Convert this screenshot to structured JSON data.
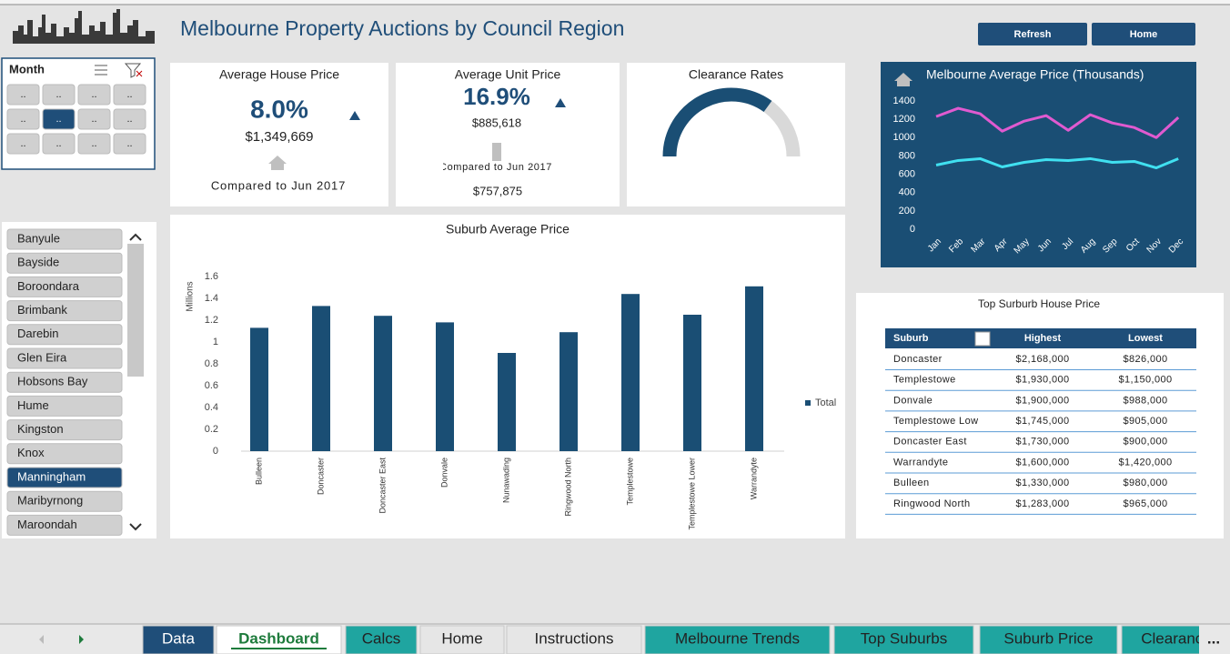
{
  "header": {
    "title": "Melbourne Property Auctions by Council Region",
    "buttons": [
      "Refresh",
      "Home"
    ]
  },
  "month_slicer": {
    "title": "Month",
    "buttons": [
      "..",
      "..",
      "..",
      "..",
      "..",
      "..",
      "..",
      "..",
      "..",
      "..",
      "..",
      ".."
    ],
    "selected": 5
  },
  "kpis": [
    {
      "title": "Average House Price",
      "change": "8.0%",
      "price": "$1,349,669",
      "note": "Compared to Jun 2017"
    },
    {
      "title": "Average Unit Price",
      "change": "16.9%",
      "price": "$885,618",
      "note": "Compared to Jun 2017",
      "previous": "$757,875"
    }
  ],
  "council_slicer": {
    "items": [
      "Banyule",
      "Bayside",
      "Boroondara",
      "Brimbank",
      "Darebin",
      "Glen Eira",
      "Hobsons Bay",
      "Hume",
      "Kingston",
      "Knox",
      "Manningham",
      "Maribyrnong",
      "Maroondah"
    ],
    "selected": 10
  },
  "chart_data": [
    {
      "type": "gauge",
      "title": "Clearance Rates",
      "value": 70,
      "lim": [
        0,
        100
      ],
      "color": "#1a4e74",
      "track_color": "#d9d9d9"
    },
    {
      "type": "bar",
      "title": "Suburb Average Price",
      "y_label": "Millions",
      "categories": [
        "Bulleen",
        "Doncaster",
        "Doncaster East",
        "Donvale",
        "Nunawading",
        "Ringwood North",
        "Templestowe",
        "Templestowe Lower",
        "Warrandyte"
      ],
      "series": [
        {
          "name": "Total",
          "color": "#1a4e74",
          "values": [
            1.13,
            1.33,
            1.24,
            1.18,
            0.9,
            1.09,
            1.44,
            1.25,
            1.51
          ]
        }
      ],
      "ylim": [
        0,
        1.6
      ],
      "yticks": [
        0,
        0.2,
        0.4,
        0.6,
        0.8,
        1,
        1.2,
        1.4,
        1.6
      ],
      "legend": "right"
    },
    {
      "type": "line",
      "title": "Melbourne Average Price (Thousands)",
      "categories": [
        "Jan",
        "Feb",
        "Mar",
        "Apr",
        "May",
        "Jun",
        "Jul",
        "Aug",
        "Sep",
        "Oct",
        "Nov",
        "Dec"
      ],
      "series": [
        {
          "color": "#e05ad0",
          "values": [
            1230,
            1320,
            1260,
            1070,
            1180,
            1240,
            1080,
            1250,
            1160,
            1110,
            1000,
            1220
          ]
        },
        {
          "color": "#40e0f0",
          "values": [
            700,
            750,
            770,
            680,
            730,
            760,
            750,
            770,
            730,
            740,
            670,
            770
          ]
        }
      ],
      "ylim": [
        0,
        1400
      ],
      "yticks": [
        0,
        200,
        400,
        600,
        800,
        1000,
        1200,
        1400
      ],
      "background": "#1a4e74"
    }
  ],
  "table": {
    "title": "Top Surburb House Price",
    "columns": [
      "Suburb",
      "Highest",
      "Lowest"
    ],
    "rows": [
      [
        "Doncaster",
        "$2,168,000",
        "$826,000"
      ],
      [
        "Templestowe",
        "$1,930,000",
        "$1,150,000"
      ],
      [
        "Donvale",
        "$1,900,000",
        "$988,000"
      ],
      [
        "Templestowe Low",
        "$1,745,000",
        "$905,000"
      ],
      [
        "Doncaster East",
        "$1,730,000",
        "$900,000"
      ],
      [
        "Warrandyte",
        "$1,600,000",
        "$1,420,000"
      ],
      [
        "Bulleen",
        "$1,330,000",
        "$980,000"
      ],
      [
        "Ringwood North",
        "$1,283,000",
        "$965,000"
      ]
    ]
  },
  "sheet_tabs": {
    "tabs": [
      {
        "label": "Data",
        "color": "#1f4e79"
      },
      {
        "label": "Dashboard",
        "color": "#ffffff"
      },
      {
        "label": "Calcs",
        "color": "#1fa5a0"
      },
      {
        "label": "Home",
        "color": "#e6e6e6"
      },
      {
        "label": "Instructions",
        "color": "#e6e6e6"
      },
      {
        "label": "Melbourne Trends",
        "color": "#1fa5a0"
      },
      {
        "label": "Top Suburbs",
        "color": "#1fa5a0"
      },
      {
        "label": "Suburb Price",
        "color": "#1fa5a0"
      },
      {
        "label": "Clearance",
        "color": "#1fa5a0"
      }
    ],
    "more": "..."
  }
}
